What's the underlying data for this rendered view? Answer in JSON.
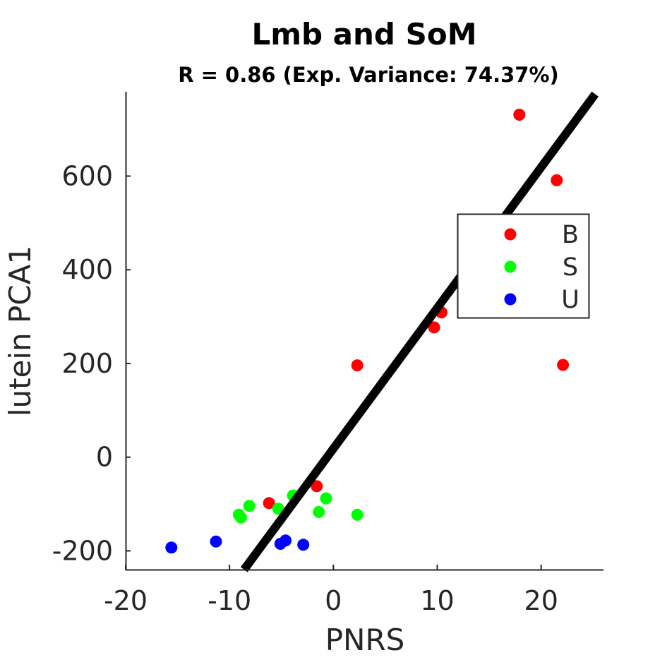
{
  "chart_data": {
    "type": "scatter",
    "title": "Lmb and SoM",
    "subtitle": "R = 0.86 (Exp. Variance: 74.37%)",
    "xlabel": "PNRS",
    "ylabel": "lutein PCA1",
    "xlim": [
      -20,
      26
    ],
    "ylim": [
      -240,
      780
    ],
    "xticks": [
      -20,
      -10,
      0,
      10,
      20
    ],
    "yticks": [
      -200,
      0,
      200,
      400,
      600
    ],
    "grid": false,
    "legend_position": "right",
    "series": [
      {
        "name": "B",
        "color": "#ff0000",
        "points": [
          {
            "x": 17.9,
            "y": 731
          },
          {
            "x": 21.5,
            "y": 591
          },
          {
            "x": 10.4,
            "y": 309
          },
          {
            "x": 9.7,
            "y": 277
          },
          {
            "x": 2.3,
            "y": 196
          },
          {
            "x": 22.1,
            "y": 197
          },
          {
            "x": -1.6,
            "y": -62
          },
          {
            "x": -6.2,
            "y": -98
          }
        ]
      },
      {
        "name": "S",
        "color": "#00ff00",
        "points": [
          {
            "x": -3.9,
            "y": -82
          },
          {
            "x": -0.7,
            "y": -88
          },
          {
            "x": -8.1,
            "y": -104
          },
          {
            "x": -5.3,
            "y": -110
          },
          {
            "x": -1.4,
            "y": -117
          },
          {
            "x": -9.1,
            "y": -123
          },
          {
            "x": -8.9,
            "y": -129
          },
          {
            "x": 2.3,
            "y": -123
          }
        ]
      },
      {
        "name": "U",
        "color": "#0000ff",
        "points": [
          {
            "x": -15.6,
            "y": -193
          },
          {
            "x": -11.3,
            "y": -180
          },
          {
            "x": -5.1,
            "y": -185
          },
          {
            "x": -4.6,
            "y": -178
          },
          {
            "x": -2.9,
            "y": -187
          }
        ]
      }
    ],
    "fit_line": {
      "color": "#000000",
      "points": [
        {
          "x": -8.6,
          "y": -240
        },
        {
          "x": 25.2,
          "y": 775
        }
      ]
    }
  }
}
